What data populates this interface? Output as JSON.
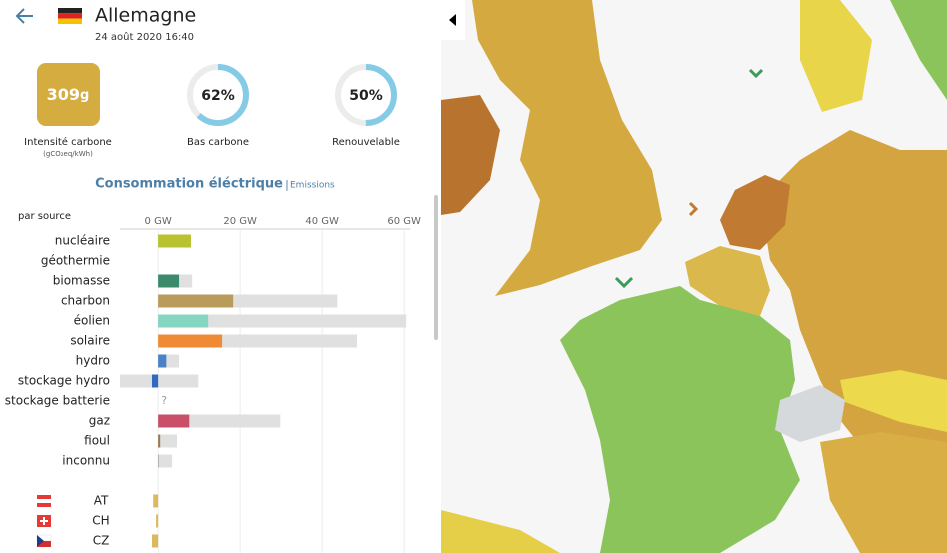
{
  "header": {
    "title": "Allemagne",
    "datetime": "24 août 2020 16:40"
  },
  "metrics": {
    "carbon_intensity": 309,
    "carbon_unit": "g",
    "carbon_label": "Intensité carbone",
    "carbon_sublabel": "(gCO₂eq/kWh)",
    "low_carbon": {
      "value": 62,
      "label": "62%"
    },
    "low_carbon_label": "Bas carbone",
    "renewable": {
      "value": 50,
      "label": "50%"
    },
    "renewable_label": "Renouvelable"
  },
  "section": {
    "title": "Consommation éléctrique",
    "separator": "|",
    "link": "Emissions"
  },
  "chart_data": {
    "type": "bar",
    "orientation": "horizontal",
    "subtitle": "par source",
    "categories": [
      "nucléaire",
      "géothermie",
      "biomasse",
      "charbon",
      "éolien",
      "solaire",
      "hydro",
      "stockage hydro",
      "stockage batterie",
      "gaz",
      "fioul",
      "inconnu"
    ],
    "values": [
      8.0,
      null,
      5.1,
      18.3,
      12.2,
      15.6,
      2.0,
      -1.5,
      null,
      7.6,
      0.5,
      0.2
    ],
    "value_labels": [
      null,
      null,
      null,
      null,
      null,
      null,
      null,
      null,
      "?",
      null,
      null,
      null
    ],
    "colors": [
      "#b9c22f",
      null,
      "#3b8a6c",
      "#b99b5b",
      "#84d6c0",
      "#ef8b37",
      "#4a82c6",
      "#2f6cbf",
      null,
      "#c95069",
      "#9a7a4f",
      "#a8a8a8"
    ],
    "capacity": [
      8.0,
      null,
      8.3,
      43.7,
      60.5,
      48.5,
      5.1,
      9.8,
      null,
      29.8,
      4.6,
      3.4
    ],
    "capacity_min": [
      null,
      null,
      null,
      null,
      null,
      null,
      null,
      -9.3,
      null,
      null,
      null,
      null
    ],
    "capacity_color": "#e0e0e0",
    "exchange_categories": [
      "AT",
      "CH",
      "CZ"
    ],
    "exchange_values": [
      -1.2,
      -0.5,
      -1.5
    ],
    "exchange_color": "#dcb85e",
    "xlim": [
      -9.3,
      61.5
    ],
    "xticks": [
      {
        "value": 0,
        "label": "0 GW"
      },
      {
        "value": 20,
        "label": "20 GW"
      },
      {
        "value": 40,
        "label": "40 GW"
      },
      {
        "value": 60,
        "label": "60 GW"
      }
    ],
    "grid": true
  }
}
